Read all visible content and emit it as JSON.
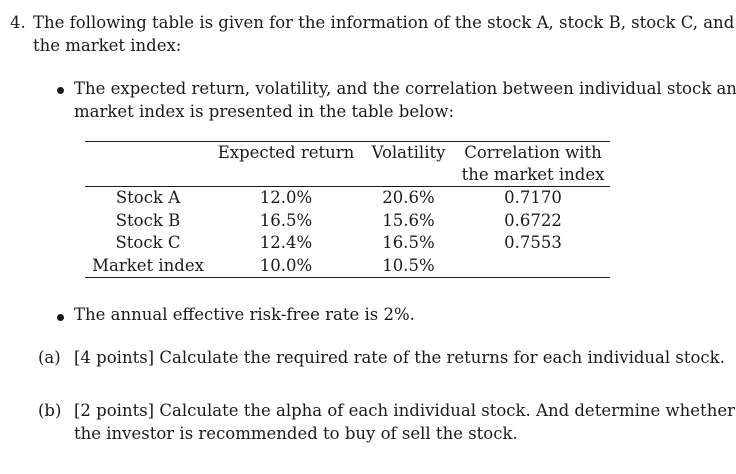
{
  "question": {
    "number": "4.",
    "intro_line1": "The following table is given for the information of the stock A, stock B, stock C, and",
    "intro_line2": "the market index:"
  },
  "bullets": {
    "first_line1": "The expected return, volatility, and the correlation between individual stock and",
    "first_line2": "market index is presented in the table below:",
    "second": "The annual effective risk-free rate is 2%."
  },
  "table": {
    "headers": {
      "name": "",
      "expected_return": "Expected return",
      "volatility": "Volatility",
      "correlation_line1": "Correlation with",
      "correlation_line2": "the market index"
    },
    "rows": [
      {
        "name": "Stock A",
        "expected_return": "12.0%",
        "volatility": "20.6%",
        "correlation": "0.7170"
      },
      {
        "name": "Stock B",
        "expected_return": "16.5%",
        "volatility": "15.6%",
        "correlation": "0.6722"
      },
      {
        "name": "Stock C",
        "expected_return": "12.4%",
        "volatility": "16.5%",
        "correlation": "0.7553"
      },
      {
        "name": "Market index",
        "expected_return": "10.0%",
        "volatility": "10.5%",
        "correlation": ""
      }
    ]
  },
  "parts": {
    "a_label": "(a)",
    "a_text": "[4 points] Calculate the required rate of the returns for each individual stock.",
    "b_label": "(b)",
    "b_text_line1": "[2 points] Calculate the alpha of each individual stock. And determine whether",
    "b_text_line2": "the investor is recommended to buy of sell the stock."
  }
}
